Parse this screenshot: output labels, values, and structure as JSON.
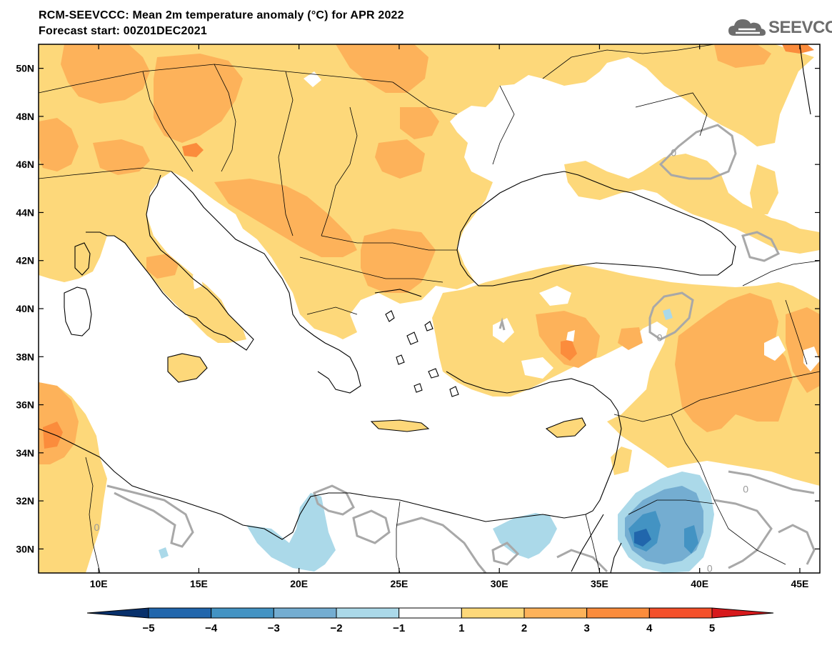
{
  "title": {
    "line1": "RCM-SEEVCCC: Mean 2m temperature anomaly (°C) for APR 2022",
    "line2": "Forecast start: 00Z01DEC2021"
  },
  "logo": {
    "text": "SEEVCCC",
    "icon": "cloud-icon"
  },
  "map": {
    "lon_range": [
      7,
      46
    ],
    "lat_range": [
      29,
      51
    ],
    "lon_ticks": [
      {
        "value": 10,
        "label": "10E"
      },
      {
        "value": 15,
        "label": "15E"
      },
      {
        "value": 20,
        "label": "20E"
      },
      {
        "value": 25,
        "label": "25E"
      },
      {
        "value": 30,
        "label": "30E"
      },
      {
        "value": 35,
        "label": "35E"
      },
      {
        "value": 40,
        "label": "40E"
      },
      {
        "value": 45,
        "label": "45E"
      }
    ],
    "lat_ticks": [
      {
        "value": 50,
        "label": "50N"
      },
      {
        "value": 48,
        "label": "48N"
      },
      {
        "value": 46,
        "label": "46N"
      },
      {
        "value": 44,
        "label": "44N"
      },
      {
        "value": 42,
        "label": "42N"
      },
      {
        "value": 40,
        "label": "40N"
      },
      {
        "value": 38,
        "label": "38N"
      },
      {
        "value": 36,
        "label": "36N"
      },
      {
        "value": 34,
        "label": "34N"
      },
      {
        "value": 32,
        "label": "32N"
      },
      {
        "value": 30,
        "label": "30N"
      }
    ],
    "contour_labels": [
      {
        "text": "0",
        "lon": 38.7,
        "lat": 46.5
      },
      {
        "text": "0",
        "lon": 38.0,
        "lat": 38.8
      },
      {
        "text": "0",
        "lon": 9.9,
        "lat": 30.9
      },
      {
        "text": "0",
        "lon": 42.3,
        "lat": 32.5
      },
      {
        "text": "0",
        "lon": 40.5,
        "lat": 29.2
      }
    ]
  },
  "colorbar": {
    "colors": [
      "#08306b",
      "#2166ac",
      "#4393c3",
      "#74add1",
      "#abd9e9",
      "#ffffff",
      "#fdd87a",
      "#fdb25a",
      "#fb8c3c",
      "#f4502a",
      "#d7191c"
    ],
    "labels": [
      "−5",
      "−4",
      "−3",
      "−2",
      "−1",
      "1",
      "2",
      "3",
      "4",
      "5"
    ]
  }
}
